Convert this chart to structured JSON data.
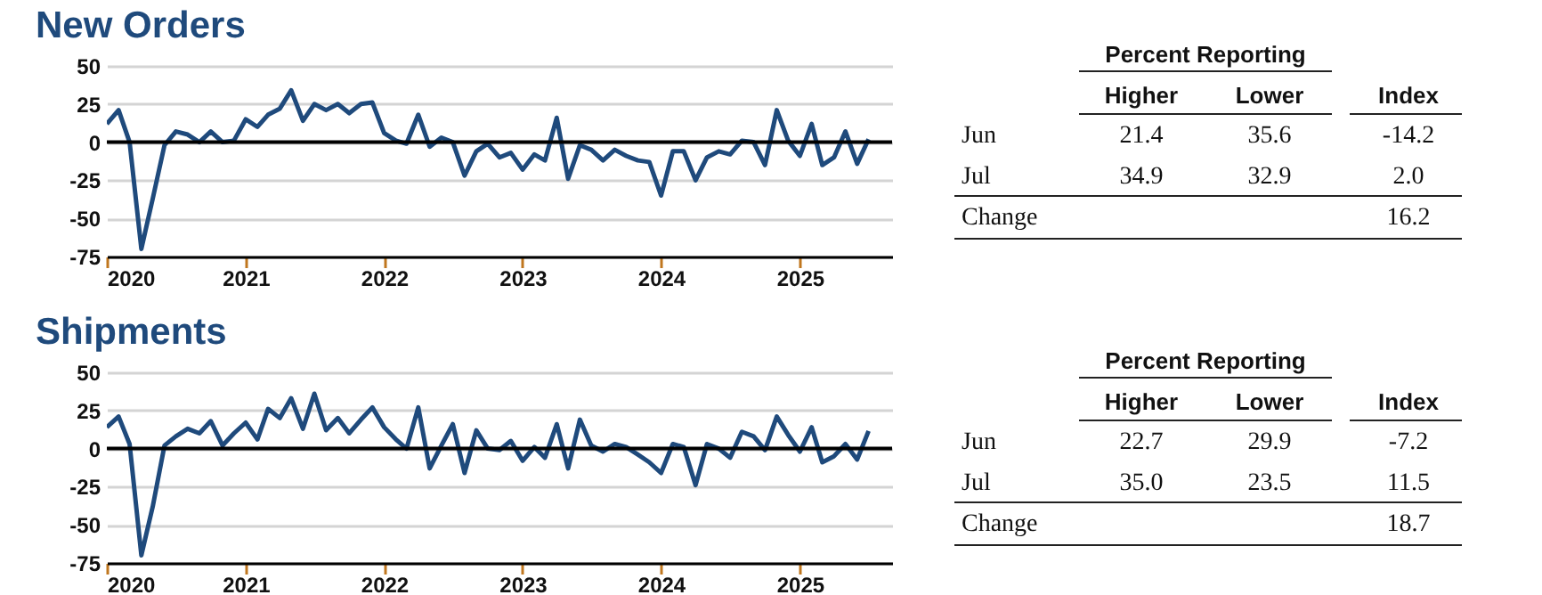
{
  "chart_data": [
    {
      "type": "line",
      "title": "New Orders",
      "x": [
        "2020-01",
        "2020-02",
        "2020-03",
        "2020-04",
        "2020-05",
        "2020-06",
        "2020-07",
        "2020-08",
        "2020-09",
        "2020-10",
        "2020-11",
        "2020-12",
        "2021-01",
        "2021-02",
        "2021-03",
        "2021-04",
        "2021-05",
        "2021-06",
        "2021-07",
        "2021-08",
        "2021-09",
        "2021-10",
        "2021-11",
        "2021-12",
        "2022-01",
        "2022-02",
        "2022-03",
        "2022-04",
        "2022-05",
        "2022-06",
        "2022-07",
        "2022-08",
        "2022-09",
        "2022-10",
        "2022-11",
        "2022-12",
        "2023-01",
        "2023-02",
        "2023-03",
        "2023-04",
        "2023-05",
        "2023-06",
        "2023-07",
        "2023-08",
        "2023-09",
        "2023-10",
        "2023-11",
        "2023-12",
        "2024-01",
        "2024-02",
        "2024-03",
        "2024-04",
        "2024-05",
        "2024-06",
        "2024-07",
        "2024-08",
        "2024-09",
        "2024-10",
        "2024-11",
        "2024-12",
        "2025-01",
        "2025-02",
        "2025-03",
        "2025-04",
        "2025-05",
        "2025-06",
        "2025-07"
      ],
      "series": [
        {
          "color": "#1f4a7c",
          "values": [
            12,
            21,
            0,
            -70,
            -37,
            -2,
            7,
            5,
            0,
            7,
            0,
            1,
            15,
            10,
            18,
            22,
            34,
            14,
            25,
            21,
            25,
            19,
            25,
            26,
            6,
            1,
            -1,
            18,
            -3,
            3,
            0,
            -22,
            -6,
            -1,
            -10,
            -7,
            -18,
            -8,
            -12,
            16,
            -24,
            -2,
            -5,
            -12,
            -5,
            -9,
            -12,
            -13,
            -35,
            -6,
            -6,
            -25,
            -10,
            -6,
            -8,
            1,
            0,
            -15,
            21,
            1,
            -9,
            12,
            -15,
            -10,
            7,
            -14.2,
            2.0
          ]
        }
      ],
      "xlim": [
        "2020-01",
        "2025-09"
      ],
      "xticks": [
        "2020",
        "2021",
        "2022",
        "2023",
        "2024",
        "2025"
      ],
      "ylim": [
        -75,
        50
      ],
      "yticks": [
        50,
        25,
        0,
        -25,
        -50,
        -75
      ],
      "grid": "y",
      "ref_lines": [
        {
          "axis": "y",
          "value": 0,
          "color": "#000000"
        }
      ]
    },
    {
      "type": "other",
      "title": "Percent Reporting",
      "categories": [
        "Higher",
        "Lower",
        "Index"
      ],
      "data_labels": true,
      "series": [
        {
          "name": "Jun",
          "values": [
            21.4,
            35.6,
            -14.2
          ],
          "value_labels": [
            "21.4",
            "35.6",
            "-14.2"
          ]
        },
        {
          "name": "Jul",
          "values": [
            34.9,
            32.9,
            2.0
          ],
          "value_labels": [
            "34.9",
            "32.9",
            "2.0"
          ]
        },
        {
          "name": "Change",
          "values": [
            null,
            null,
            16.2
          ],
          "value_labels": [
            null,
            null,
            "16.2"
          ]
        }
      ]
    },
    {
      "type": "line",
      "title": "Shipments",
      "x": [
        "2020-01",
        "2020-02",
        "2020-03",
        "2020-04",
        "2020-05",
        "2020-06",
        "2020-07",
        "2020-08",
        "2020-09",
        "2020-10",
        "2020-11",
        "2020-12",
        "2021-01",
        "2021-02",
        "2021-03",
        "2021-04",
        "2021-05",
        "2021-06",
        "2021-07",
        "2021-08",
        "2021-09",
        "2021-10",
        "2021-11",
        "2021-12",
        "2022-01",
        "2022-02",
        "2022-03",
        "2022-04",
        "2022-05",
        "2022-06",
        "2022-07",
        "2022-08",
        "2022-09",
        "2022-10",
        "2022-11",
        "2022-12",
        "2023-01",
        "2023-02",
        "2023-03",
        "2023-04",
        "2023-05",
        "2023-06",
        "2023-07",
        "2023-08",
        "2023-09",
        "2023-10",
        "2023-11",
        "2023-12",
        "2024-01",
        "2024-02",
        "2024-03",
        "2024-04",
        "2024-05",
        "2024-06",
        "2024-07",
        "2024-08",
        "2024-09",
        "2024-10",
        "2024-11",
        "2024-12",
        "2025-01",
        "2025-02",
        "2025-03",
        "2025-04",
        "2025-05",
        "2025-06",
        "2025-07"
      ],
      "series": [
        {
          "color": "#1f4a7c",
          "values": [
            14,
            21,
            3,
            -70,
            -38,
            2,
            8,
            13,
            10,
            18,
            2,
            10,
            17,
            6,
            26,
            20,
            33,
            13,
            36,
            12,
            20,
            10,
            19,
            27,
            14,
            6,
            0,
            27,
            -13,
            2,
            16,
            -16,
            12,
            0,
            -1,
            5,
            -8,
            1,
            -6,
            16,
            -13,
            19,
            2,
            -2,
            3,
            1,
            -4,
            -9,
            -16,
            3,
            1,
            -24,
            3,
            0,
            -6,
            11,
            8,
            -1,
            21,
            9,
            -2,
            14,
            -9,
            -5,
            3,
            -7.2,
            11.5
          ]
        }
      ],
      "xlim": [
        "2020-01",
        "2025-09"
      ],
      "xticks": [
        "2020",
        "2021",
        "2022",
        "2023",
        "2024",
        "2025"
      ],
      "ylim": [
        -75,
        50
      ],
      "yticks": [
        50,
        25,
        0,
        -25,
        -50,
        -75
      ],
      "grid": "y",
      "ref_lines": [
        {
          "axis": "y",
          "value": 0,
          "color": "#000000"
        }
      ]
    },
    {
      "type": "other",
      "title": "Percent Reporting",
      "categories": [
        "Higher",
        "Lower",
        "Index"
      ],
      "data_labels": true,
      "series": [
        {
          "name": "Jun",
          "values": [
            22.7,
            29.9,
            -7.2
          ],
          "value_labels": [
            "22.7",
            "29.9",
            "-7.2"
          ]
        },
        {
          "name": "Jul",
          "values": [
            35.0,
            23.5,
            11.5
          ],
          "value_labels": [
            "35.0",
            "23.5",
            "11.5"
          ]
        },
        {
          "name": "Change",
          "values": [
            null,
            null,
            18.7
          ],
          "value_labels": [
            null,
            null,
            "18.7"
          ]
        }
      ]
    }
  ]
}
